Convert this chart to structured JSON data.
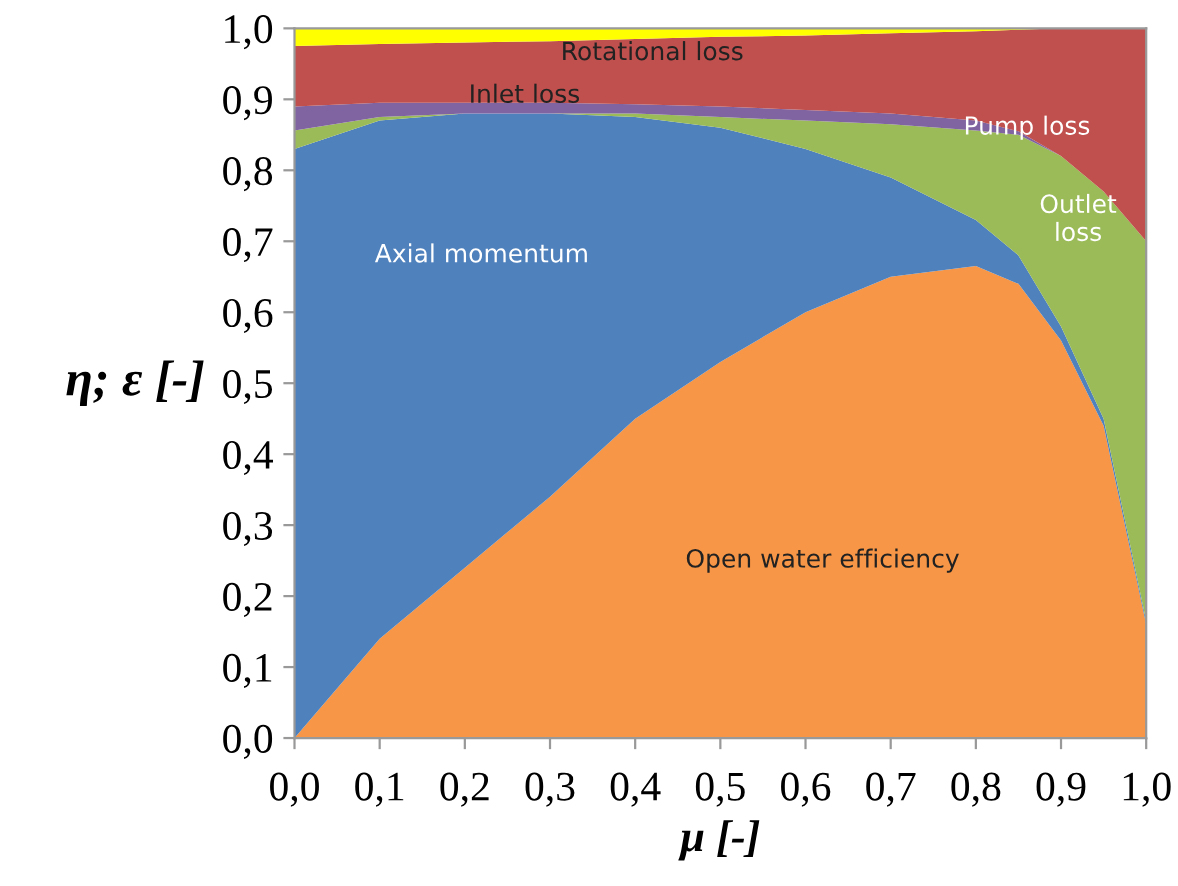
{
  "chart_data": {
    "type": "area",
    "stacked": true,
    "xlabel": "μ [-]",
    "ylabel": "η; ε [-]",
    "x": [
      0,
      0.1,
      0.2,
      0.3,
      0.4,
      0.5,
      0.6,
      0.7,
      0.8,
      0.85,
      0.9,
      0.95,
      1.0
    ],
    "series": [
      {
        "name": "Open water efficiency",
        "color": "#f79646",
        "values": [
          0,
          0.14,
          0.24,
          0.34,
          0.45,
          0.53,
          0.6,
          0.65,
          0.665,
          0.64,
          0.56,
          0.44,
          0.16
        ]
      },
      {
        "name": "Axial momentum",
        "color": "#4f81bd",
        "values": [
          0.83,
          0.73,
          0.64,
          0.54,
          0.425,
          0.33,
          0.23,
          0.14,
          0.065,
          0.04,
          0.02,
          0.01,
          0.005
        ]
      },
      {
        "name": "Outlet\nloss",
        "color": "#9bbb59",
        "values": [
          0.026,
          0.005,
          0,
          0,
          0.005,
          0.015,
          0.04,
          0.075,
          0.126,
          0.17,
          0.24,
          0.32,
          0.535
        ]
      },
      {
        "name": "Inlet loss",
        "color": "#8064a2",
        "values": [
          0.034,
          0.02,
          0.015,
          0.015,
          0.013,
          0.015,
          0.015,
          0.015,
          0.014,
          0.005,
          0,
          0,
          0
        ]
      },
      {
        "name": "Pump loss",
        "color": "#c0504d",
        "values": [
          0.085,
          0.083,
          0.085,
          0.087,
          0.092,
          0.098,
          0.105,
          0.113,
          0.126,
          0.143,
          0.18,
          0.23,
          0.3
        ]
      },
      {
        "name": "Rotational loss",
        "color": "#ffff00",
        "values": [
          0.025,
          0.022,
          0.02,
          0.018,
          0.015,
          0.012,
          0.01,
          0.007,
          0.004,
          0.002,
          0,
          0,
          0
        ]
      }
    ],
    "xlim": [
      0,
      1.0
    ],
    "xticks": [
      {
        "value": 0,
        "label": "0,0"
      },
      {
        "value": 0.1,
        "label": "0,1"
      },
      {
        "value": 0.2,
        "label": "0,2"
      },
      {
        "value": 0.3,
        "label": "0,3"
      },
      {
        "value": 0.4,
        "label": "0,4"
      },
      {
        "value": 0.5,
        "label": "0,5"
      },
      {
        "value": 0.6,
        "label": "0,6"
      },
      {
        "value": 0.7,
        "label": "0,7"
      },
      {
        "value": 0.8,
        "label": "0,8"
      },
      {
        "value": 0.9,
        "label": "0,9"
      },
      {
        "value": 1.0,
        "label": "1,0"
      }
    ],
    "ylim": [
      0,
      1.0
    ],
    "yticks": [
      {
        "value": 0,
        "label": "0,0"
      },
      {
        "value": 0.1,
        "label": "0,1"
      },
      {
        "value": 0.2,
        "label": "0,2"
      },
      {
        "value": 0.3,
        "label": "0,3"
      },
      {
        "value": 0.4,
        "label": "0,4"
      },
      {
        "value": 0.5,
        "label": "0,5"
      },
      {
        "value": 0.6,
        "label": "0,6"
      },
      {
        "value": 0.7,
        "label": "0,7"
      },
      {
        "value": 0.8,
        "label": "0,8"
      },
      {
        "value": 0.9,
        "label": "0,9"
      },
      {
        "value": 1.0,
        "label": "1,0"
      }
    ],
    "grid": false,
    "legend": false
  }
}
